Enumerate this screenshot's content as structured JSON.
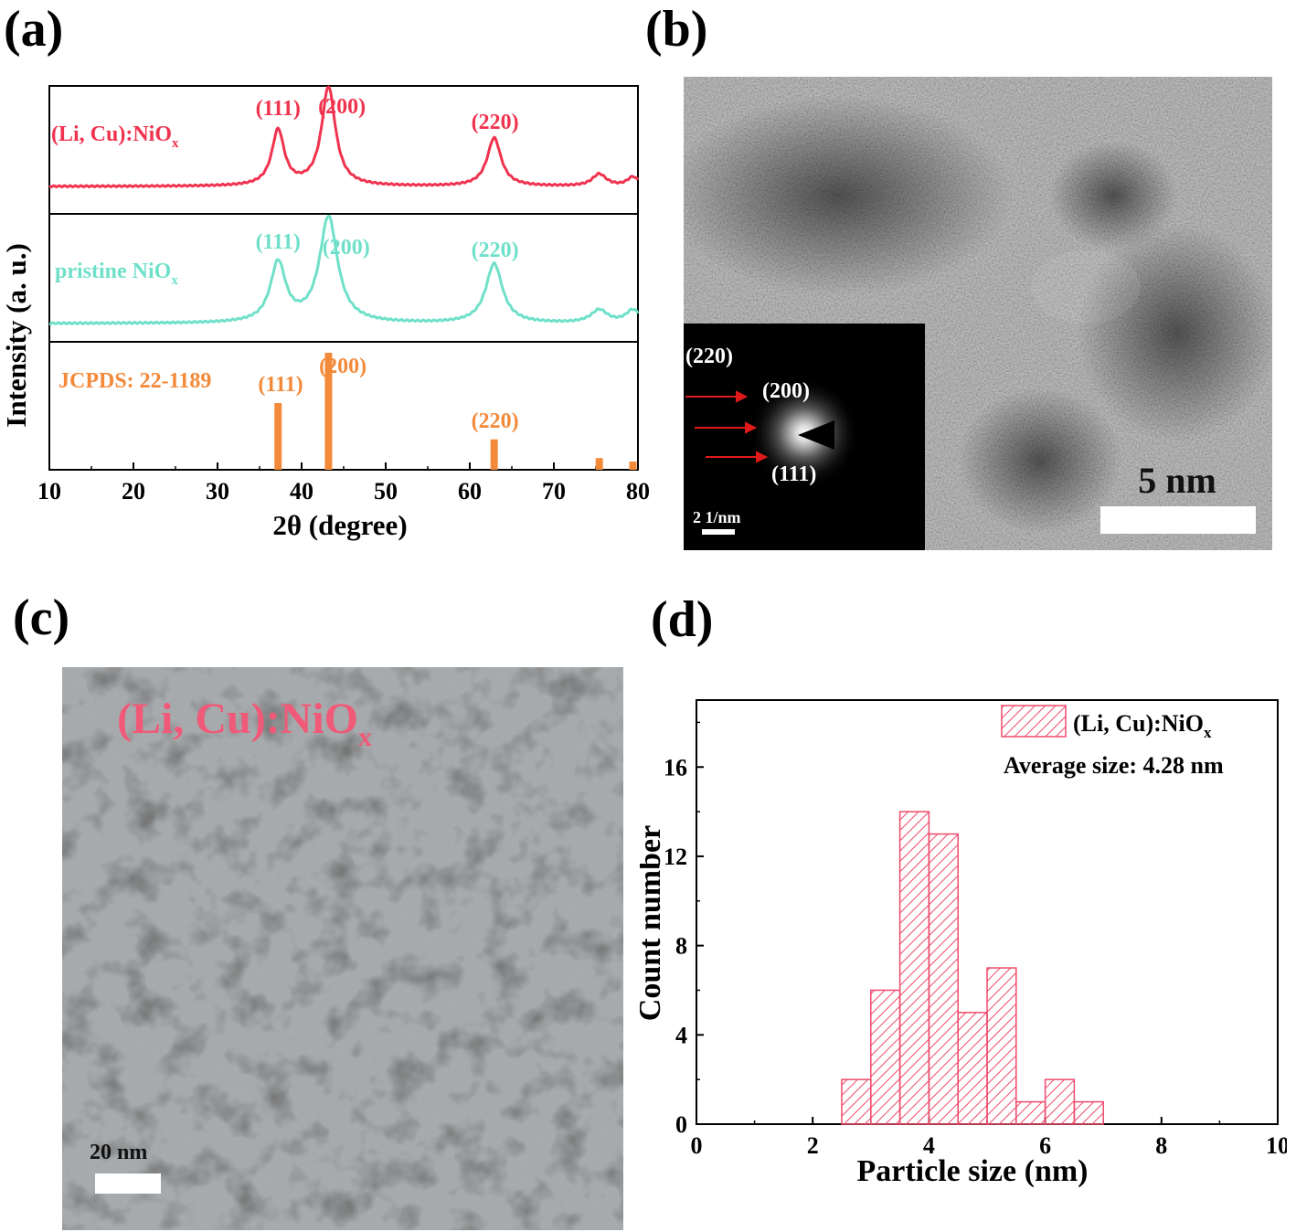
{
  "panels": {
    "a": "(a)",
    "b": "(b)",
    "c": "(c)",
    "d": "(d)"
  },
  "colors": {
    "li_cu": "#f0334f",
    "pristine": "#6fe0c9",
    "jcpds": "#f28a3a",
    "hist": "#ee4a6a"
  },
  "chart_data": [
    {
      "type": "line",
      "panel": "a",
      "xlabel": "2θ (degree)",
      "ylabel": "Intensity (a. u.)",
      "xlim": [
        10,
        80
      ],
      "xticks": [
        10,
        20,
        30,
        40,
        50,
        60,
        70,
        80
      ],
      "series": [
        {
          "name": "(Li, Cu):NiOx",
          "label_main": "(Li, Cu):NiO",
          "label_sub": "x",
          "peaks": [
            {
              "x": 37.2,
              "height": 0.55,
              "width": 0.9
            },
            {
              "x": 43.2,
              "height": 0.98,
              "width": 1.0
            },
            {
              "x": 62.9,
              "height": 0.48,
              "width": 1.0
            },
            {
              "x": 75.4,
              "height": 0.12,
              "width": 1.0
            },
            {
              "x": 79.4,
              "height": 0.09,
              "width": 0.8
            }
          ],
          "labels": [
            {
              "text": "(111)",
              "x": 37.2
            },
            {
              "text": "(200)",
              "x": 44.8
            },
            {
              "text": "(220)",
              "x": 63.0
            }
          ]
        },
        {
          "name": "pristine NiOx",
          "label_main": "pristine NiO",
          "label_sub": "x",
          "peaks": [
            {
              "x": 37.2,
              "height": 0.55,
              "width": 1.1
            },
            {
              "x": 43.2,
              "height": 0.98,
              "width": 1.3
            },
            {
              "x": 62.9,
              "height": 0.55,
              "width": 1.2
            },
            {
              "x": 75.4,
              "height": 0.12,
              "width": 1.2
            },
            {
              "x": 79.4,
              "height": 0.12,
              "width": 1.0
            }
          ],
          "labels": [
            {
              "text": "(111)",
              "x": 37.2
            },
            {
              "text": "(200)",
              "x": 45.3
            },
            {
              "text": "(220)",
              "x": 63.0
            }
          ]
        },
        {
          "name": "JCPDS: 22-1189",
          "type": "stick",
          "sticks": [
            {
              "x": 37.2,
              "value": 0.57
            },
            {
              "x": 43.2,
              "value": 1.0
            },
            {
              "x": 62.9,
              "value": 0.26
            },
            {
              "x": 75.4,
              "value": 0.1
            },
            {
              "x": 79.4,
              "value": 0.07
            }
          ],
          "labels": [
            {
              "text": "(111)",
              "x": 37.5
            },
            {
              "text": "(200)",
              "x": 44.9
            },
            {
              "text": "(220)",
              "x": 63.0
            }
          ]
        }
      ]
    },
    {
      "type": "bar",
      "panel": "d",
      "xlabel": "Particle size (nm)",
      "ylabel": "Count number",
      "xlim": [
        0,
        10
      ],
      "ylim": [
        0,
        19
      ],
      "xticks": [
        0,
        2,
        4,
        6,
        8,
        10
      ],
      "yticks": [
        0,
        4,
        8,
        12,
        16
      ],
      "legend": "top-right",
      "series": [
        {
          "name": "(Li, Cu):NiOx",
          "label_main": "(Li, Cu):NiO",
          "label_sub": "x"
        }
      ],
      "bin_width": 0.5,
      "bins": [
        2.5,
        3.0,
        3.5,
        4.0,
        4.5,
        5.0,
        5.5,
        6.0,
        6.5
      ],
      "values": [
        2,
        6,
        14,
        13,
        5,
        7,
        1,
        2,
        1
      ],
      "annotation": "Average size: 4.28 nm"
    }
  ],
  "images": {
    "b": {
      "scale_main": "5 nm",
      "inset": {
        "labels": [
          "(220)",
          "(200)",
          "(111)"
        ],
        "scale": "2 1/nm"
      }
    },
    "c": {
      "overlay_main": "(Li, Cu):NiO",
      "overlay_sub": "x",
      "scale": "20 nm"
    }
  }
}
